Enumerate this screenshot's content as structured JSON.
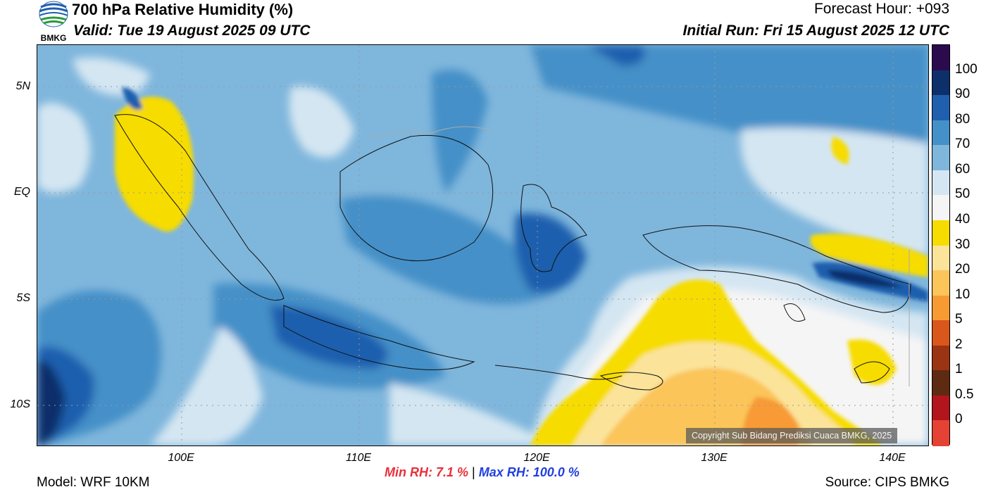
{
  "header": {
    "title": "700 hPa Relative Humidity (%)",
    "valid": "Valid: Tue 19 August 2025 09 UTC",
    "forecast_hour": "Forecast Hour: +093",
    "initial_run": "Initial Run: Fri 15 August 2025 12 UTC",
    "logo_text": "BMKG"
  },
  "map": {
    "lat_labels": [
      "5N",
      "EQ",
      "5S",
      "10S"
    ],
    "lon_labels": [
      "100E",
      "110E",
      "120E",
      "130E",
      "140E"
    ],
    "copyright": "Copyright Sub Bidang Prediksi Cuaca BMKG, 2025"
  },
  "colorbar": {
    "labels": [
      "100",
      "90",
      "80",
      "70",
      "60",
      "50",
      "40",
      "30",
      "20",
      "10",
      "5",
      "2",
      "1",
      "0.5",
      "0"
    ],
    "colors": [
      "#2c0a4e",
      "#0d2f6a",
      "#1f5fae",
      "#4490c8",
      "#7fb6dc",
      "#d4e6f2",
      "#f5f5f5",
      "#f7dc00",
      "#fbe39a",
      "#fbc55a",
      "#f89a34",
      "#d9571a",
      "#9a3412",
      "#5e2a12",
      "#b3151c",
      "#e34234"
    ]
  },
  "stats": {
    "min_rh": "Min RH:   7.1 %",
    "separator": "|",
    "max_rh": "Max RH: 100.0 %"
  },
  "footer": {
    "model": "Model: WRF 10KM",
    "source": "Source: CIPS BMKG"
  }
}
